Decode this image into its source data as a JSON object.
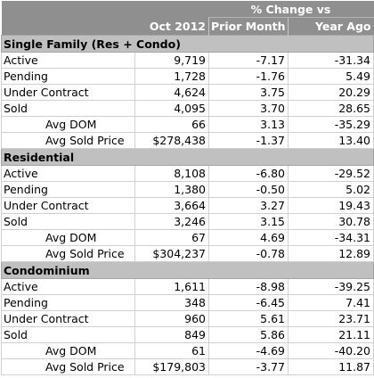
{
  "header": {
    "group_label": "% Change vs",
    "col_period": "Oct 2012",
    "col_prior": "Prior Month",
    "col_year": "Year Ago"
  },
  "sections": [
    {
      "title": "Single Family (Res + Condo)",
      "rows": [
        {
          "label": "Active",
          "sub": false,
          "value": "9,719",
          "prior": "-7.17",
          "year": "-31.34"
        },
        {
          "label": "Pending",
          "sub": false,
          "value": "1,728",
          "prior": "-1.76",
          "year": "5.49"
        },
        {
          "label": "Under Contract",
          "sub": false,
          "value": "4,624",
          "prior": "3.75",
          "year": "20.29"
        },
        {
          "label": "Sold",
          "sub": false,
          "value": "4,095",
          "prior": "3.70",
          "year": "28.65"
        },
        {
          "label": "Avg DOM",
          "sub": true,
          "value": "66",
          "prior": "3.13",
          "year": "-35.29"
        },
        {
          "label": "Avg Sold Price",
          "sub": true,
          "value": "$278,438",
          "prior": "-1.37",
          "year": "13.40"
        }
      ]
    },
    {
      "title": "Residential",
      "rows": [
        {
          "label": "Active",
          "sub": false,
          "value": "8,108",
          "prior": "-6.80",
          "year": "-29.52"
        },
        {
          "label": "Pending",
          "sub": false,
          "value": "1,380",
          "prior": "-0.50",
          "year": "5.02"
        },
        {
          "label": "Under Contract",
          "sub": false,
          "value": "3,664",
          "prior": "3.27",
          "year": "19.43"
        },
        {
          "label": "Sold",
          "sub": false,
          "value": "3,246",
          "prior": "3.15",
          "year": "30.78"
        },
        {
          "label": "Avg DOM",
          "sub": true,
          "value": "67",
          "prior": "4.69",
          "year": "-34.31"
        },
        {
          "label": "Avg Sold Price",
          "sub": true,
          "value": "$304,237",
          "prior": "-0.78",
          "year": "12.89"
        }
      ]
    },
    {
      "title": "Condominium",
      "rows": [
        {
          "label": "Active",
          "sub": false,
          "value": "1,611",
          "prior": "-8.98",
          "year": "-39.25"
        },
        {
          "label": "Pending",
          "sub": false,
          "value": "348",
          "prior": "-6.45",
          "year": "7.41"
        },
        {
          "label": "Under Contract",
          "sub": false,
          "value": "960",
          "prior": "5.61",
          "year": "23.71"
        },
        {
          "label": "Sold",
          "sub": false,
          "value": "849",
          "prior": "5.86",
          "year": "21.11"
        },
        {
          "label": "Avg DOM",
          "sub": true,
          "value": "61",
          "prior": "-4.69",
          "year": "-40.20"
        },
        {
          "label": "Avg Sold Price",
          "sub": true,
          "value": "$179,803",
          "prior": "-3.77",
          "year": "11.87"
        }
      ]
    }
  ]
}
